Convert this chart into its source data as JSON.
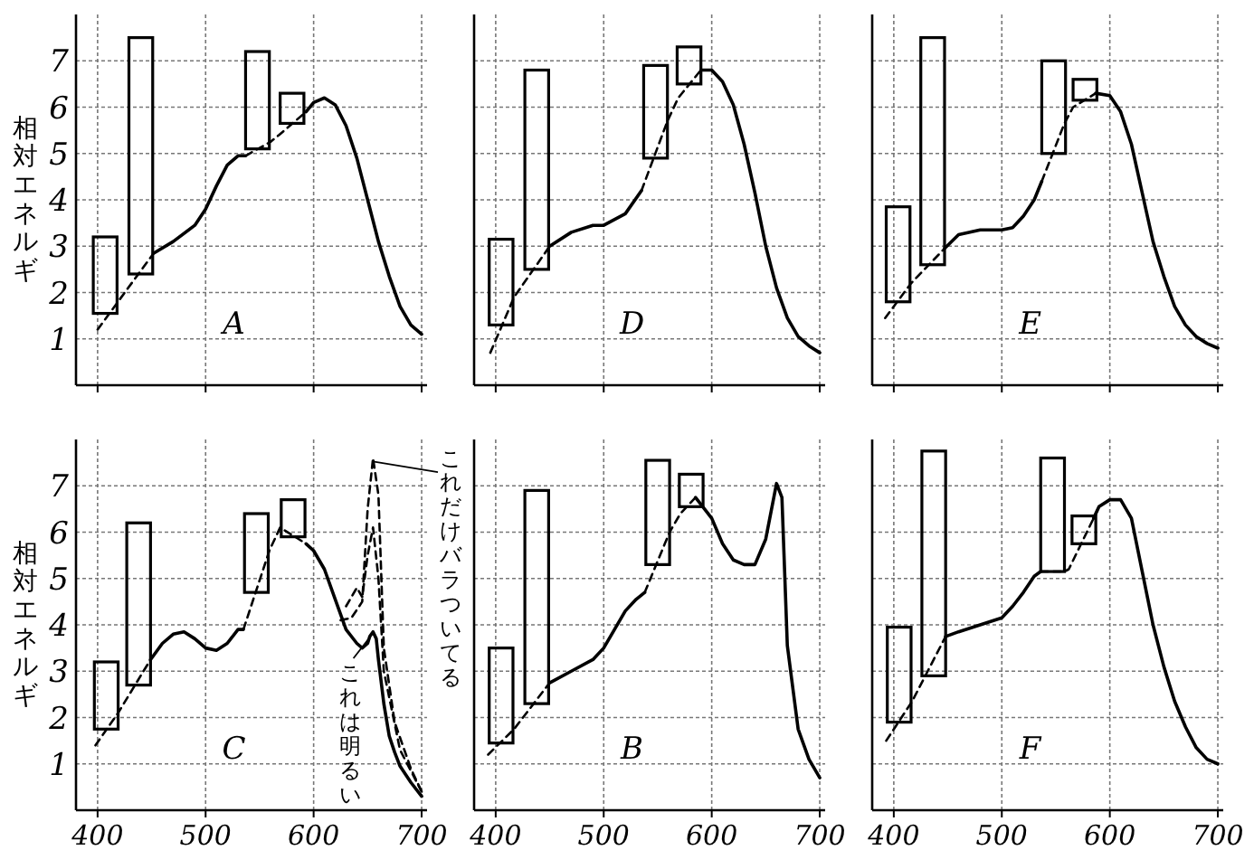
{
  "chart_data": [
    {
      "type": "line",
      "title": "A",
      "ylabel": "相対エネルギ",
      "x": [
        400,
        422,
        452,
        470,
        490,
        500,
        510,
        520,
        530,
        537,
        560,
        568,
        593,
        600,
        610,
        620,
        630,
        640,
        650,
        660,
        670,
        680,
        690,
        700
      ],
      "xlim": [
        380,
        705
      ],
      "ylim": [
        0,
        8
      ],
      "xticks": [
        400,
        500,
        600,
        700
      ],
      "yticks": [
        1,
        2,
        3,
        4,
        5,
        6,
        7
      ],
      "grid": true,
      "tick_labels": "y",
      "series": [
        {
          "type": "bar",
          "x": [
            407,
            440,
            548,
            580
          ],
          "base": [
            1.55,
            2.4,
            5.1,
            5.65
          ],
          "values": [
            1.65,
            5.1,
            2.1,
            0.65
          ],
          "color": "#000000"
        },
        {
          "color": "#000000",
          "line_style": "dashed",
          "values": [
            1.2,
            1.9,
            2.85,
            null,
            null,
            null,
            null,
            null,
            null,
            4.95,
            5.25,
            5.4,
            5.9,
            null,
            null,
            null,
            null,
            null,
            null,
            null,
            null,
            null,
            null,
            null
          ]
        },
        {
          "color": "#000000",
          "line_style": "solid",
          "values": [
            null,
            null,
            2.85,
            3.1,
            3.45,
            3.8,
            4.3,
            4.75,
            4.95,
            4.95,
            null,
            null,
            5.9,
            6.1,
            6.2,
            6.05,
            5.6,
            4.9,
            4.0,
            3.1,
            2.35,
            1.7,
            1.3,
            1.1
          ]
        }
      ]
    },
    {
      "type": "line",
      "title": "D",
      "x": [
        395,
        417,
        450,
        470,
        490,
        500,
        520,
        535,
        559,
        569,
        590,
        600,
        610,
        620,
        630,
        640,
        650,
        660,
        670,
        680,
        690,
        700
      ],
      "xlim": [
        380,
        705
      ],
      "ylim": [
        0,
        8
      ],
      "xticks": [
        400,
        500,
        600,
        700
      ],
      "yticks": [
        1,
        2,
        3,
        4,
        5,
        6,
        7
      ],
      "grid": true,
      "tick_labels": false,
      "series": [
        {
          "type": "bar",
          "x": [
            405,
            438,
            548,
            579
          ],
          "base": [
            1.3,
            2.5,
            4.9,
            6.5
          ],
          "values": [
            1.85,
            4.3,
            2.0,
            0.8
          ],
          "color": "#000000"
        },
        {
          "color": "#000000",
          "line_style": "dashed",
          "values": [
            0.7,
            1.9,
            3.0,
            null,
            null,
            null,
            null,
            4.2,
            5.7,
            6.2,
            6.8,
            null,
            null,
            null,
            null,
            null,
            null,
            null,
            null,
            null,
            null,
            null
          ]
        },
        {
          "color": "#000000",
          "line_style": "solid",
          "values": [
            null,
            null,
            3.0,
            3.3,
            3.45,
            3.45,
            3.7,
            4.2,
            null,
            null,
            6.8,
            6.8,
            6.55,
            6.05,
            5.2,
            4.15,
            3.0,
            2.1,
            1.45,
            1.05,
            0.85,
            0.7
          ]
        }
      ]
    },
    {
      "type": "line",
      "title": "E",
      "x": [
        392,
        416,
        447,
        460,
        480,
        500,
        510,
        520,
        530,
        537,
        558,
        566,
        587,
        600,
        610,
        620,
        630,
        640,
        650,
        660,
        670,
        680,
        690,
        700
      ],
      "xlim": [
        380,
        705
      ],
      "ylim": [
        0,
        8
      ],
      "xticks": [
        400,
        500,
        600,
        700
      ],
      "yticks": [
        1,
        2,
        3,
        4,
        5,
        6,
        7
      ],
      "grid": true,
      "tick_labels": false,
      "series": [
        {
          "type": "bar",
          "x": [
            404,
            436,
            548,
            577
          ],
          "base": [
            1.8,
            2.6,
            5.0,
            6.15
          ],
          "values": [
            2.05,
            4.9,
            2.0,
            0.45
          ],
          "color": "#000000"
        },
        {
          "color": "#000000",
          "line_style": "dashed",
          "values": [
            1.45,
            2.2,
            2.95,
            null,
            null,
            null,
            null,
            null,
            null,
            4.4,
            5.65,
            6.0,
            6.3,
            null,
            null,
            null,
            null,
            null,
            null,
            null,
            null,
            null,
            null,
            null
          ]
        },
        {
          "color": "#000000",
          "line_style": "solid",
          "values": [
            null,
            null,
            2.95,
            3.25,
            3.35,
            3.35,
            3.4,
            3.65,
            4.0,
            4.4,
            null,
            null,
            6.3,
            6.25,
            5.9,
            5.2,
            4.15,
            3.1,
            2.35,
            1.7,
            1.3,
            1.05,
            0.9,
            0.8
          ]
        }
      ]
    },
    {
      "type": "line",
      "title": "C",
      "ylabel": "相対エネルギ",
      "x": [
        398,
        419,
        449,
        460,
        470,
        480,
        490,
        500,
        510,
        520,
        530,
        535,
        559,
        569,
        593,
        600,
        610,
        620,
        630,
        640,
        645,
        650,
        652,
        655,
        658,
        660,
        665,
        670,
        675,
        680,
        690,
        700
      ],
      "xlim": [
        380,
        705
      ],
      "ylim": [
        0,
        8
      ],
      "xticks": [
        400,
        500,
        600,
        700
      ],
      "yticks": [
        1,
        2,
        3,
        4,
        5,
        6,
        7
      ],
      "grid": true,
      "annotations": [
        "これは明るい",
        "これだけバラついてる"
      ],
      "series": [
        {
          "type": "bar",
          "x": [
            408,
            438,
            547,
            581
          ],
          "base": [
            1.75,
            2.7,
            4.7,
            5.9
          ],
          "values": [
            1.45,
            3.5,
            1.7,
            0.8
          ],
          "color": "#000000"
        },
        {
          "color": "#000000",
          "line_style": "dashed",
          "values": [
            1.4,
            2.1,
            3.25,
            null,
            null,
            null,
            null,
            null,
            null,
            null,
            null,
            3.9,
            5.6,
            6.1,
            5.75,
            null,
            null,
            null,
            null,
            null,
            null,
            null,
            null,
            null,
            null,
            null,
            null,
            null,
            null,
            null,
            null,
            null
          ]
        },
        {
          "color": "#000000",
          "line_style": "solid",
          "values": [
            null,
            null,
            3.25,
            3.6,
            3.8,
            3.85,
            3.7,
            3.5,
            3.45,
            3.6,
            3.9,
            3.9,
            null,
            null,
            5.75,
            5.6,
            5.2,
            4.55,
            3.9,
            3.6,
            3.5,
            3.6,
            3.75,
            3.85,
            3.7,
            3.25,
            2.3,
            1.6,
            1.25,
            0.95,
            0.6,
            0.3
          ]
        },
        {
          "color": "#000000",
          "line_style": "dashed",
          "x": [
            625,
            635,
            645,
            650,
            655,
            660,
            665,
            675,
            690,
            700
          ],
          "values": [
            4.1,
            4.15,
            4.5,
            6.5,
            7.6,
            6.8,
            3.5,
            1.9,
            0.9,
            0.4
          ]
        },
        {
          "color": "#000000",
          "line_style": "dashed",
          "x": [
            630,
            640,
            645,
            650,
            655,
            660,
            665,
            680,
            700
          ],
          "values": [
            4.4,
            4.8,
            4.6,
            5.5,
            6.1,
            5.0,
            3.0,
            1.3,
            0.4
          ]
        }
      ]
    },
    {
      "type": "line",
      "title": "B",
      "x": [
        393,
        417,
        450,
        470,
        490,
        500,
        510,
        520,
        530,
        538,
        561,
        571,
        585,
        600,
        610,
        620,
        630,
        640,
        650,
        660,
        665,
        670,
        680,
        690,
        700
      ],
      "xlim": [
        380,
        705
      ],
      "ylim": [
        0,
        8
      ],
      "xticks": [
        400,
        500,
        600,
        700
      ],
      "yticks": [
        1,
        2,
        3,
        4,
        5,
        6,
        7
      ],
      "grid": true,
      "tick_labels": "x",
      "series": [
        {
          "type": "bar",
          "x": [
            405,
            438,
            550,
            581
          ],
          "base": [
            1.45,
            2.3,
            5.3,
            6.55
          ],
          "values": [
            2.05,
            4.6,
            2.25,
            0.7
          ],
          "color": "#000000"
        },
        {
          "color": "#000000",
          "line_style": "dashed",
          "values": [
            1.2,
            1.75,
            2.75,
            null,
            null,
            null,
            null,
            null,
            null,
            4.7,
            6.0,
            6.4,
            6.75,
            null,
            null,
            null,
            null,
            null,
            null,
            null,
            null,
            null,
            null,
            null,
            null
          ]
        },
        {
          "color": "#000000",
          "line_style": "solid",
          "values": [
            null,
            null,
            2.75,
            3.0,
            3.25,
            3.5,
            3.9,
            4.3,
            4.55,
            4.7,
            null,
            null,
            6.75,
            6.3,
            5.75,
            5.4,
            5.3,
            5.3,
            5.85,
            7.05,
            6.75,
            3.55,
            1.75,
            1.1,
            0.7
          ]
        }
      ]
    },
    {
      "type": "line",
      "title": "F",
      "x": [
        393,
        417,
        448,
        460,
        480,
        500,
        510,
        520,
        530,
        536,
        558,
        562,
        585,
        590,
        600,
        610,
        620,
        630,
        640,
        650,
        660,
        670,
        680,
        690,
        700
      ],
      "xlim": [
        380,
        705
      ],
      "ylim": [
        0,
        8
      ],
      "xticks": [
        400,
        500,
        600,
        700
      ],
      "yticks": [
        1,
        2,
        3,
        4,
        5,
        6,
        7
      ],
      "grid": true,
      "tick_labels": "x",
      "series": [
        {
          "type": "bar",
          "x": [
            405,
            437,
            547,
            576
          ],
          "base": [
            1.9,
            2.9,
            5.15,
            5.75
          ],
          "values": [
            2.05,
            4.85,
            2.45,
            0.6
          ],
          "color": "#000000"
        },
        {
          "color": "#000000",
          "line_style": "dashed",
          "values": [
            1.5,
            2.35,
            3.75,
            null,
            null,
            null,
            null,
            null,
            null,
            5.15,
            5.15,
            5.2,
            6.3,
            null,
            null,
            null,
            null,
            null,
            null,
            null,
            null,
            null,
            null,
            null,
            null
          ]
        },
        {
          "color": "#000000",
          "line_style": "solid",
          "values": [
            null,
            null,
            3.75,
            3.85,
            4.0,
            4.15,
            4.4,
            4.7,
            5.05,
            5.15,
            null,
            null,
            6.3,
            6.55,
            6.7,
            6.7,
            6.3,
            5.15,
            4.0,
            3.1,
            2.35,
            1.8,
            1.35,
            1.1,
            1.0
          ]
        }
      ]
    }
  ]
}
